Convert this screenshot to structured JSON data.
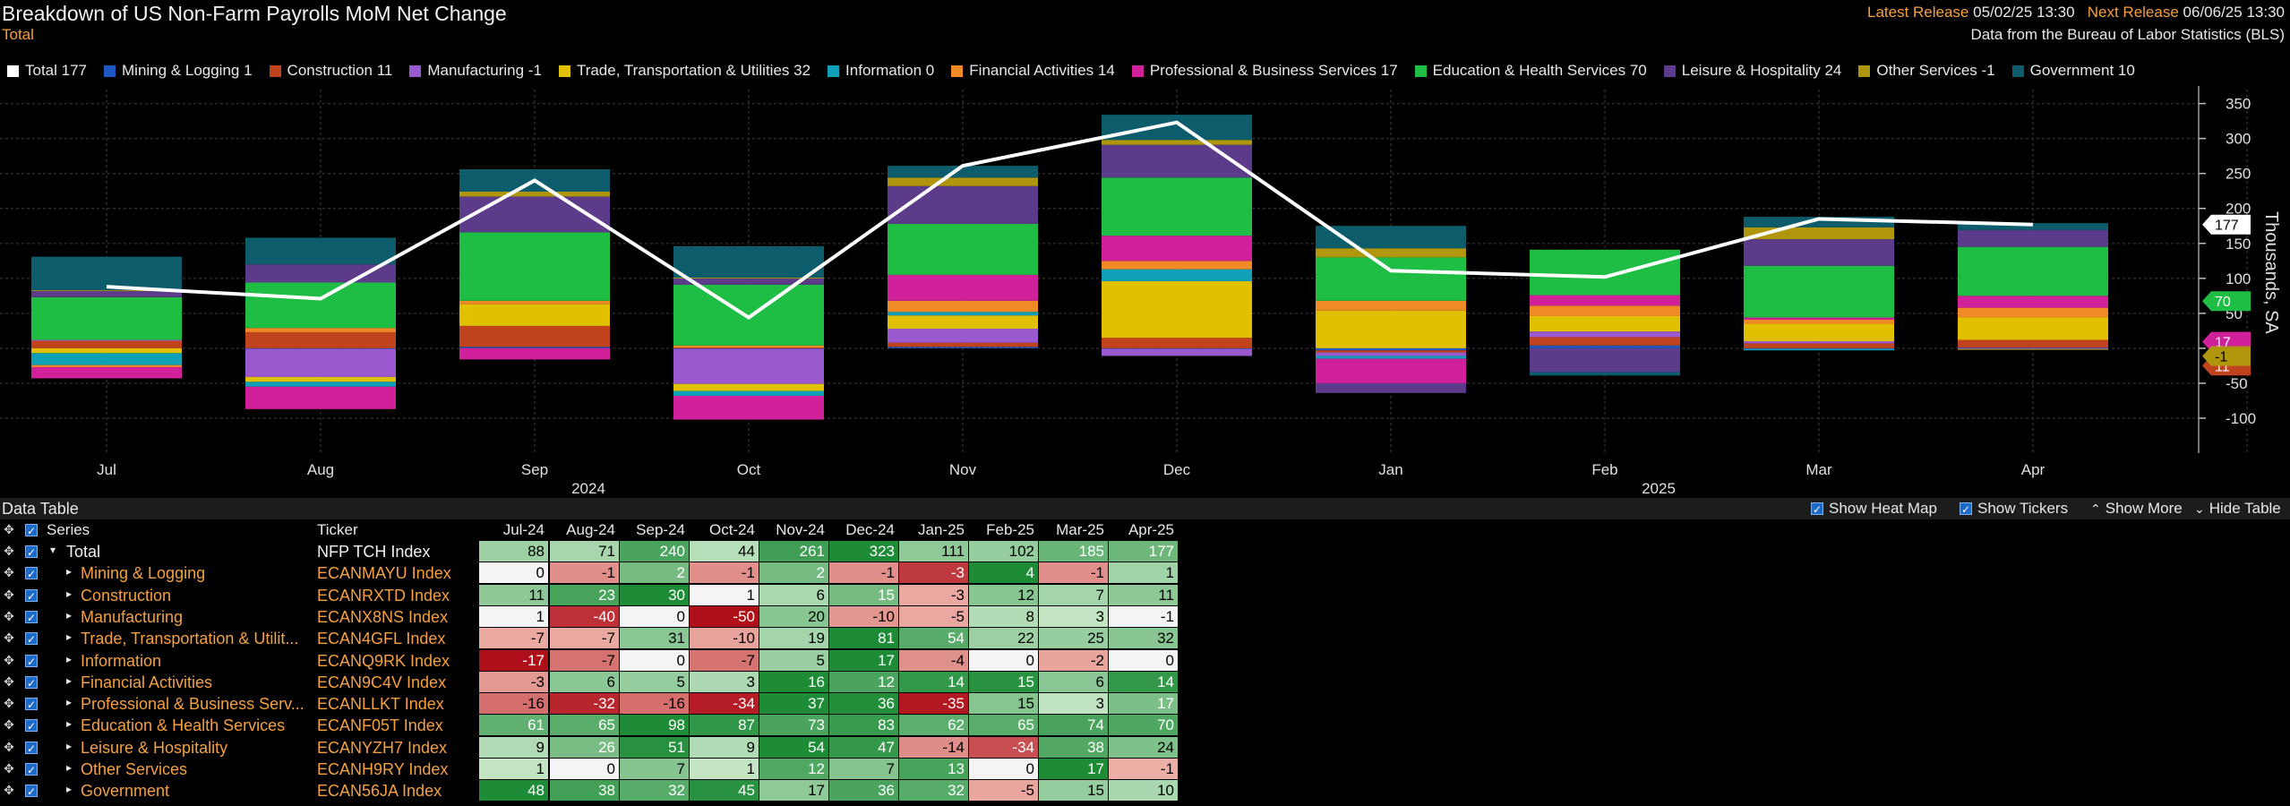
{
  "header": {
    "title": "Breakdown of US Non-Farm Payrolls MoM Net Change",
    "subtitle": "Total",
    "latest_release_label": "Latest Release",
    "latest_release_value": "05/02/25 13:30",
    "next_release_label": "Next Release",
    "next_release_value": "06/06/25 13:30",
    "source": "Data from the Bureau of Labor Statistics (BLS)"
  },
  "legend": [
    {
      "label": "Total 177",
      "color": "#ffffff",
      "icon": "square"
    },
    {
      "label": "Mining & Logging 1",
      "color": "#1f57c3",
      "icon": "square"
    },
    {
      "label": "Construction 11",
      "color": "#c0431e",
      "icon": "square"
    },
    {
      "label": "Manufacturing -1",
      "color": "#9b59d0",
      "icon": "square"
    },
    {
      "label": "Trade, Transportation & Utilities 32",
      "color": "#e0c000",
      "icon": "square"
    },
    {
      "label": "Information 0",
      "color": "#10a0b8",
      "icon": "square"
    },
    {
      "label": "Financial Activities 14",
      "color": "#f08a24",
      "icon": "square"
    },
    {
      "label": "Professional & Business Services 17",
      "color": "#d0209a",
      "icon": "square"
    },
    {
      "label": "Education & Health Services 70",
      "color": "#1ebd44",
      "icon": "square"
    },
    {
      "label": "Leisure & Hospitality 24",
      "color": "#5c3b8a",
      "icon": "square"
    },
    {
      "label": "Other Services -1",
      "color": "#b0960c",
      "icon": "square"
    },
    {
      "label": "Government 10",
      "color": "#0c5c6c",
      "icon": "square"
    }
  ],
  "chart_data": {
    "type": "bar",
    "stacked": true,
    "categories": [
      "Jul",
      "Aug",
      "Sep",
      "Oct",
      "Nov",
      "Dec",
      "Jan",
      "Feb",
      "Mar",
      "Apr"
    ],
    "year_labels": [
      {
        "label": "2024",
        "after_index": 2
      },
      {
        "label": "2025",
        "after_index": 7
      }
    ],
    "ylabel": "Thousands, SA",
    "ylim": [
      -150,
      370
    ],
    "yticks": [
      350,
      300,
      250,
      200,
      150,
      100,
      50,
      0,
      -50,
      -100
    ],
    "ytick_labels": [
      "350",
      "300",
      "250",
      "200",
      "150",
      "100",
      "50",
      "0",
      "-50",
      "-100"
    ],
    "y_axis_side": "right",
    "grid": true,
    "series": [
      {
        "name": "Mining & Logging",
        "color": "#1f57c3",
        "values": [
          0,
          -1,
          2,
          -1,
          2,
          -1,
          -3,
          4,
          -1,
          1
        ]
      },
      {
        "name": "Construction",
        "color": "#c0431e",
        "values": [
          11,
          23,
          30,
          1,
          6,
          15,
          -3,
          12,
          7,
          11
        ]
      },
      {
        "name": "Manufacturing",
        "color": "#9b59d0",
        "values": [
          1,
          -40,
          0,
          -50,
          20,
          -10,
          -5,
          8,
          3,
          -1
        ]
      },
      {
        "name": "Trade, Transportation & Utilities",
        "color": "#e0c000",
        "values": [
          -7,
          -7,
          31,
          -10,
          19,
          81,
          54,
          22,
          25,
          32
        ]
      },
      {
        "name": "Information",
        "color": "#10a0b8",
        "values": [
          -17,
          -7,
          0,
          -7,
          5,
          17,
          -4,
          0,
          -2,
          0
        ]
      },
      {
        "name": "Financial Activities",
        "color": "#f08a24",
        "values": [
          -3,
          6,
          5,
          3,
          16,
          12,
          14,
          15,
          6,
          14
        ]
      },
      {
        "name": "Professional & Business Services",
        "color": "#d0209a",
        "values": [
          -16,
          -32,
          -16,
          -34,
          37,
          36,
          -35,
          15,
          3,
          17
        ]
      },
      {
        "name": "Education & Health Services",
        "color": "#1ebd44",
        "values": [
          61,
          65,
          98,
          87,
          73,
          83,
          62,
          65,
          74,
          70
        ]
      },
      {
        "name": "Leisure & Hospitality",
        "color": "#5c3b8a",
        "values": [
          9,
          26,
          51,
          9,
          54,
          47,
          -14,
          -34,
          38,
          24
        ]
      },
      {
        "name": "Other Services",
        "color": "#b0960c",
        "values": [
          1,
          0,
          7,
          1,
          12,
          7,
          13,
          0,
          17,
          -1
        ]
      },
      {
        "name": "Government",
        "color": "#0c5c6c",
        "values": [
          48,
          38,
          32,
          45,
          17,
          36,
          32,
          -5,
          15,
          10
        ]
      }
    ],
    "total_line": {
      "name": "Total",
      "color": "#ffffff",
      "values": [
        88,
        71,
        240,
        44,
        261,
        323,
        111,
        102,
        185,
        177
      ]
    },
    "right_tags": [
      {
        "value": 177,
        "label": "177",
        "bg": "#ffffff",
        "fg": "#000000"
      },
      {
        "value": 70,
        "label": "70",
        "bg": "#1ebd44",
        "fg": "#ffffff"
      },
      {
        "value": 17,
        "label": "17",
        "bg": "#d0209a",
        "fg": "#ffffff"
      },
      {
        "value": 11,
        "label": "11",
        "bg": "#c0431e",
        "fg": "#ffffff"
      },
      {
        "value": -1,
        "label": "-1",
        "bg": "#b0960c",
        "fg": "#000000"
      }
    ]
  },
  "table": {
    "title": "Data Table",
    "controls": [
      {
        "label": "Show Heat Map",
        "type": "checkbox"
      },
      {
        "label": "Show Tickers",
        "type": "checkbox"
      },
      {
        "label": "Show More",
        "type": "link",
        "glyph": "⮝"
      },
      {
        "label": "Hide Table",
        "type": "link",
        "glyph": "⮟"
      }
    ],
    "col_series": "Series",
    "col_ticker": "Ticker",
    "months": [
      "Jul-24",
      "Aug-24",
      "Sep-24",
      "Oct-24",
      "Nov-24",
      "Dec-24",
      "Jan-25",
      "Feb-25",
      "Mar-25",
      "Apr-25"
    ],
    "rows": [
      {
        "name": "Total",
        "ticker": "NFP TCH Index",
        "values": [
          88,
          71,
          240,
          44,
          261,
          323,
          111,
          102,
          185,
          177
        ],
        "expanded": true
      },
      {
        "name": "Mining & Logging",
        "ticker": "ECANMAYU Index",
        "values": [
          0,
          -1,
          2,
          -1,
          2,
          -1,
          -3,
          4,
          -1,
          1
        ]
      },
      {
        "name": "Construction",
        "ticker": "ECANRXTD Index",
        "values": [
          11,
          23,
          30,
          1,
          6,
          15,
          -3,
          12,
          7,
          11
        ]
      },
      {
        "name": "Manufacturing",
        "ticker": "ECANX8NS Index",
        "values": [
          1,
          -40,
          0,
          -50,
          20,
          -10,
          -5,
          8,
          3,
          -1
        ]
      },
      {
        "name": "Trade, Transportation & Utilit...",
        "ticker": "ECAN4GFL Index",
        "values": [
          -7,
          -7,
          31,
          -10,
          19,
          81,
          54,
          22,
          25,
          32
        ]
      },
      {
        "name": "Information",
        "ticker": "ECANQ9RK Index",
        "values": [
          -17,
          -7,
          0,
          -7,
          5,
          17,
          -4,
          0,
          -2,
          0
        ]
      },
      {
        "name": "Financial Activities",
        "ticker": "ECAN9C4V Index",
        "values": [
          -3,
          6,
          5,
          3,
          16,
          12,
          14,
          15,
          6,
          14
        ]
      },
      {
        "name": "Professional & Business Serv...",
        "ticker": "ECANLLKT Index",
        "values": [
          -16,
          -32,
          -16,
          -34,
          37,
          36,
          -35,
          15,
          3,
          17
        ]
      },
      {
        "name": "Education & Health Services",
        "ticker": "ECANF05T Index",
        "values": [
          61,
          65,
          98,
          87,
          73,
          83,
          62,
          65,
          74,
          70
        ]
      },
      {
        "name": "Leisure & Hospitality",
        "ticker": "ECANYZH7 Index",
        "values": [
          9,
          26,
          51,
          9,
          54,
          47,
          -14,
          -34,
          38,
          24
        ]
      },
      {
        "name": "Other Services",
        "ticker": "ECANH9RY Index",
        "values": [
          1,
          0,
          7,
          1,
          12,
          7,
          13,
          0,
          17,
          -1
        ]
      },
      {
        "name": "Government",
        "ticker": "ECAN56JA Index",
        "values": [
          48,
          38,
          32,
          45,
          17,
          36,
          32,
          -5,
          15,
          10
        ]
      }
    ]
  }
}
